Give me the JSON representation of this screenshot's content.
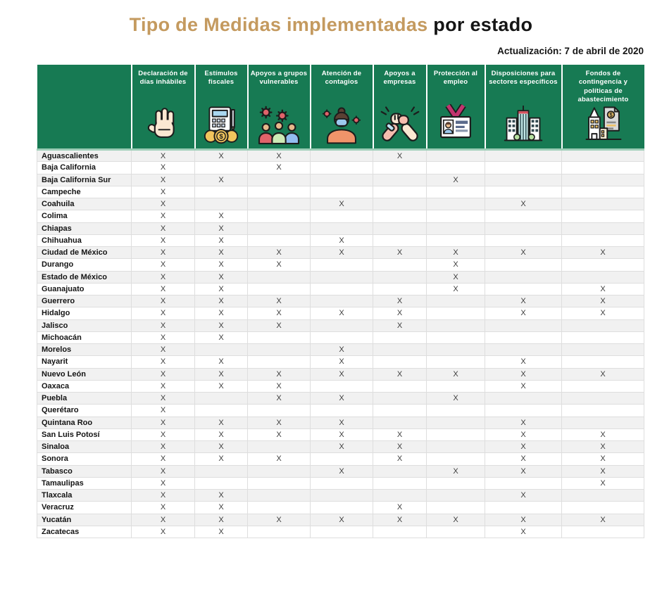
{
  "title": {
    "highlight": "Tipo de Medidas implementadas",
    "rest": "por estado"
  },
  "updated": "Actualización: 7 de abril de 2020",
  "colors": {
    "header_green": "#177a53",
    "title_gold": "#c49a5f",
    "row_alt": "#f1f1f1",
    "mark": "#3c3c3c",
    "header_label": "#ffffff"
  },
  "chart_data": {
    "type": "table",
    "title": "Tipo de Medidas implementadas por estado",
    "subtitle": "Actualización: 7 de abril de 2020",
    "mark_symbol": "X",
    "columns": [
      {
        "label": "Declaración de días inhábiles",
        "icon": "stop-hand-icon"
      },
      {
        "label": "Estímulos fiscales",
        "icon": "calculator-coins-icon"
      },
      {
        "label": "Apoyos a grupos vulnerables",
        "icon": "people-virus-icon"
      },
      {
        "label": "Atención de contagios",
        "icon": "masked-person-icon"
      },
      {
        "label": "Apoyos a empresas",
        "icon": "clasped-hands-icon"
      },
      {
        "label": "Protección al empleo",
        "icon": "id-badge-icon"
      },
      {
        "label": "Disposiciones para sectores específicos",
        "icon": "buildings-icon"
      },
      {
        "label": "Fondos de contingencia y políticas de abastecimiento",
        "icon": "building-document-icon"
      }
    ],
    "states": [
      {
        "name": "Aguascalientes",
        "marks": [
          1,
          1,
          1,
          0,
          1,
          0,
          0,
          0
        ]
      },
      {
        "name": "Baja California",
        "marks": [
          1,
          0,
          1,
          0,
          0,
          0,
          0,
          0
        ]
      },
      {
        "name": "Baja California Sur",
        "marks": [
          1,
          1,
          0,
          0,
          0,
          1,
          0,
          0
        ]
      },
      {
        "name": "Campeche",
        "marks": [
          1,
          0,
          0,
          0,
          0,
          0,
          0,
          0
        ]
      },
      {
        "name": "Coahuila",
        "marks": [
          1,
          0,
          0,
          1,
          0,
          0,
          1,
          0
        ]
      },
      {
        "name": "Colima",
        "marks": [
          1,
          1,
          0,
          0,
          0,
          0,
          0,
          0
        ]
      },
      {
        "name": "Chiapas",
        "marks": [
          1,
          1,
          0,
          0,
          0,
          0,
          0,
          0
        ]
      },
      {
        "name": "Chihuahua",
        "marks": [
          1,
          1,
          0,
          1,
          0,
          0,
          0,
          0
        ]
      },
      {
        "name": "Ciudad de México",
        "marks": [
          1,
          1,
          1,
          1,
          1,
          1,
          1,
          1
        ]
      },
      {
        "name": "Durango",
        "marks": [
          1,
          1,
          1,
          0,
          0,
          1,
          0,
          0
        ]
      },
      {
        "name": "Estado de México",
        "marks": [
          1,
          1,
          0,
          0,
          0,
          1,
          0,
          0
        ]
      },
      {
        "name": "Guanajuato",
        "marks": [
          1,
          1,
          0,
          0,
          0,
          1,
          0,
          1
        ]
      },
      {
        "name": "Guerrero",
        "marks": [
          1,
          1,
          1,
          0,
          1,
          0,
          1,
          1
        ]
      },
      {
        "name": "Hidalgo",
        "marks": [
          1,
          1,
          1,
          1,
          1,
          0,
          1,
          1
        ]
      },
      {
        "name": "Jalisco",
        "marks": [
          1,
          1,
          1,
          0,
          1,
          0,
          0,
          0
        ]
      },
      {
        "name": "Michoacán",
        "marks": [
          1,
          1,
          0,
          0,
          0,
          0,
          0,
          0
        ]
      },
      {
        "name": "Morelos",
        "marks": [
          1,
          0,
          0,
          1,
          0,
          0,
          0,
          0
        ]
      },
      {
        "name": "Nayarit",
        "marks": [
          1,
          1,
          0,
          1,
          0,
          0,
          1,
          0
        ]
      },
      {
        "name": "Nuevo León",
        "marks": [
          1,
          1,
          1,
          1,
          1,
          1,
          1,
          1
        ]
      },
      {
        "name": "Oaxaca",
        "marks": [
          1,
          1,
          1,
          0,
          0,
          0,
          1,
          0
        ]
      },
      {
        "name": "Puebla",
        "marks": [
          1,
          0,
          1,
          1,
          0,
          1,
          0,
          0
        ]
      },
      {
        "name": "Querétaro",
        "marks": [
          1,
          0,
          0,
          0,
          0,
          0,
          0,
          0
        ]
      },
      {
        "name": "Quintana Roo",
        "marks": [
          1,
          1,
          1,
          1,
          0,
          0,
          1,
          0
        ]
      },
      {
        "name": "San Luis Potosí",
        "marks": [
          1,
          1,
          1,
          1,
          1,
          0,
          1,
          1
        ]
      },
      {
        "name": "Sinaloa",
        "marks": [
          1,
          1,
          0,
          1,
          1,
          0,
          1,
          1
        ]
      },
      {
        "name": "Sonora",
        "marks": [
          1,
          1,
          1,
          0,
          1,
          0,
          1,
          1
        ]
      },
      {
        "name": "Tabasco",
        "marks": [
          1,
          0,
          0,
          1,
          0,
          1,
          1,
          1
        ]
      },
      {
        "name": "Tamaulipas",
        "marks": [
          1,
          0,
          0,
          0,
          0,
          0,
          0,
          1
        ]
      },
      {
        "name": "Tlaxcala",
        "marks": [
          1,
          1,
          0,
          0,
          0,
          0,
          1,
          0
        ]
      },
      {
        "name": "Veracruz",
        "marks": [
          1,
          1,
          0,
          0,
          1,
          0,
          0,
          0
        ]
      },
      {
        "name": "Yucatán",
        "marks": [
          1,
          1,
          1,
          1,
          1,
          1,
          1,
          1
        ]
      },
      {
        "name": "Zacatecas",
        "marks": [
          1,
          1,
          0,
          0,
          0,
          0,
          1,
          0
        ]
      }
    ]
  }
}
